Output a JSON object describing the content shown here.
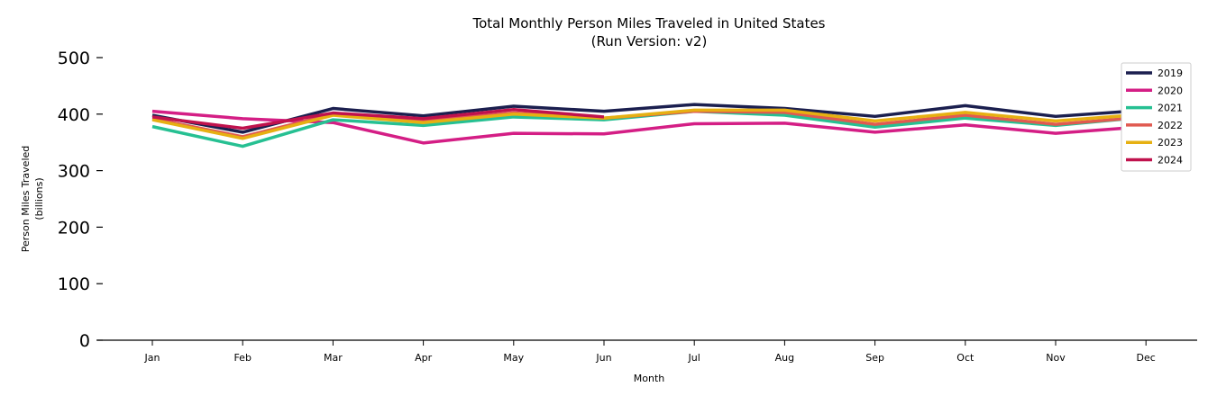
{
  "chart_data": {
    "type": "line",
    "title": "Total Monthly Person Miles Traveled in United States",
    "subtitle": "(Run Version: v2)",
    "xlabel": "Month",
    "ylabel": "Person Miles Traveled",
    "ylabel_sub": "(billions)",
    "categories": [
      "Jan",
      "Feb",
      "Mar",
      "Apr",
      "May",
      "Jun",
      "Jul",
      "Aug",
      "Sep",
      "Oct",
      "Nov",
      "Dec"
    ],
    "ylim": [
      0,
      500
    ],
    "yticks": [
      "0",
      "100",
      "200",
      "300",
      "400",
      "500"
    ],
    "grid": false,
    "legend_position": "top-right",
    "series": [
      {
        "name": "2019",
        "color": "#1b1f4f",
        "values": [
          398,
          368,
          410,
          397,
          414,
          405,
          417,
          410,
          396,
          415,
          396,
          407
        ]
      },
      {
        "name": "2020",
        "color": "#d41e85",
        "values": [
          405,
          392,
          385,
          349,
          366,
          365,
          383,
          384,
          368,
          381,
          366,
          378
        ]
      },
      {
        "name": "2021",
        "color": "#26c092",
        "values": [
          378,
          343,
          390,
          380,
          395,
          390,
          405,
          398,
          377,
          393,
          380,
          395
        ]
      },
      {
        "name": "2022",
        "color": "#e05a50",
        "values": [
          392,
          360,
          400,
          388,
          402,
          393,
          405,
          403,
          382,
          398,
          382,
          395
        ]
      },
      {
        "name": "2023",
        "color": "#e6b012",
        "values": [
          390,
          357,
          398,
          385,
          400,
          393,
          407,
          407,
          388,
          403,
          388,
          400
        ]
      },
      {
        "name": "2024",
        "color": "#c0124d",
        "values": [
          395,
          375,
          402,
          392,
          408,
          395,
          null,
          null,
          null,
          null,
          null,
          null
        ]
      }
    ]
  }
}
